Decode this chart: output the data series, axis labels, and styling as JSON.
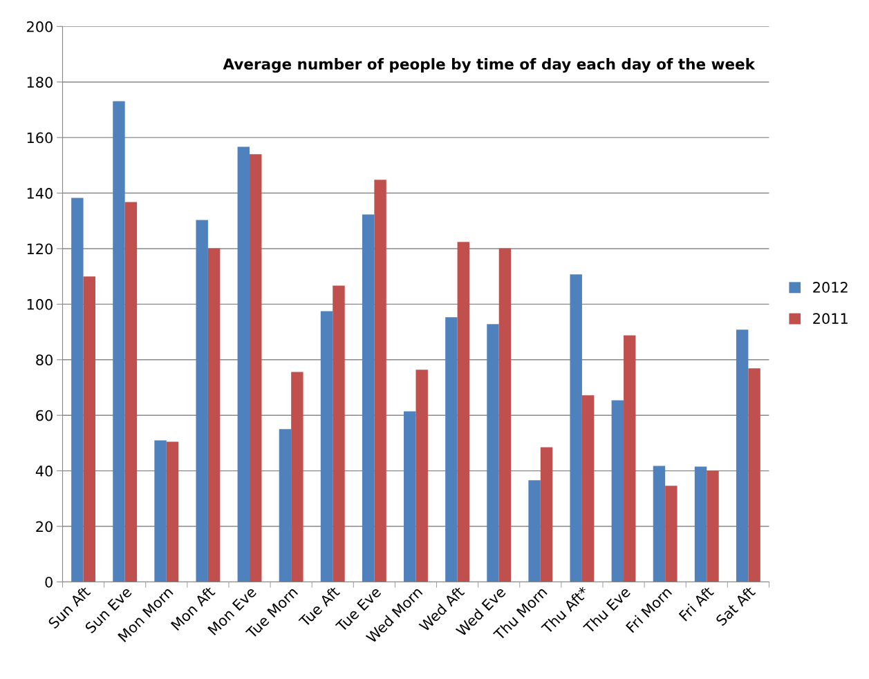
{
  "chart_data": {
    "type": "bar",
    "title": "Average number of people by time of day each day of the week",
    "categories": [
      "Sun Aft",
      "Sun Eve",
      "Mon Morn",
      "Mon Aft",
      "Mon Eve",
      "Tue Morn",
      "Tue Aft",
      "Tue Eve",
      "Wed Morn",
      "Wed Aft",
      "Wed Eve",
      "Thu Morn",
      "Thu Aft*",
      "Thu Eve",
      "Fri Morn",
      "Fri Aft",
      "Sat Aft"
    ],
    "series": [
      {
        "name": "2012",
        "color": "#4f81bd",
        "values": [
          138.3,
          173.1,
          51,
          130.3,
          156.7,
          55,
          97.5,
          132.3,
          61.4,
          95.3,
          92.8,
          36.6,
          110.7,
          65.4,
          41.8,
          41.5,
          90.8
        ]
      },
      {
        "name": "2011",
        "color": "#c0504d",
        "values": [
          110,
          136.8,
          50.5,
          120.1,
          154,
          75.6,
          106.7,
          144.8,
          76.4,
          122.4,
          120.1,
          48.5,
          67.2,
          88.8,
          34.6,
          40,
          76.9
        ]
      }
    ],
    "ylim": [
      0,
      200
    ],
    "yticks": [
      0,
      20,
      40,
      60,
      80,
      100,
      120,
      140,
      160,
      180,
      200
    ],
    "grid": "y",
    "legend": "right"
  }
}
